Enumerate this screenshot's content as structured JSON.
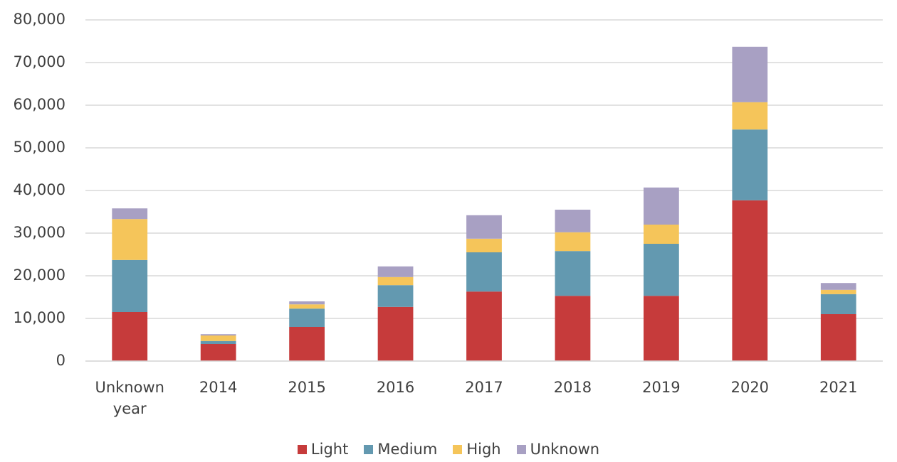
{
  "chart_data": {
    "type": "stacked_bar",
    "categories": [
      "Unknown year",
      "2014",
      "2015",
      "2016",
      "2017",
      "2018",
      "2019",
      "2020",
      "2021"
    ],
    "series": [
      {
        "name": "Light",
        "color": "#c63b3b",
        "values": [
          11500,
          4000,
          8000,
          12700,
          16300,
          15300,
          15300,
          37700,
          11000
        ]
      },
      {
        "name": "Medium",
        "color": "#6399b0",
        "values": [
          12200,
          700,
          4300,
          5100,
          9200,
          10500,
          12200,
          16600,
          4700
        ]
      },
      {
        "name": "High",
        "color": "#f5c55a",
        "values": [
          9600,
          1300,
          1000,
          1900,
          3200,
          4400,
          4500,
          6400,
          1000
        ]
      },
      {
        "name": "Unknown",
        "color": "#a8a0c3",
        "values": [
          2500,
          300,
          700,
          2500,
          5500,
          5300,
          8700,
          13000,
          1600
        ]
      }
    ],
    "ylim": [
      0,
      80000
    ],
    "yticks": [
      0,
      {
        "value": 10000,
        "label": "10,000"
      },
      {
        "value": 20000,
        "label": "20,000"
      },
      {
        "value": 30000,
        "label": "30,000"
      },
      {
        "value": 40000,
        "label": "40,000"
      },
      {
        "value": 50000,
        "label": "50,000"
      },
      {
        "value": 60000,
        "label": "60,000"
      },
      {
        "value": 70000,
        "label": "70,000"
      },
      {
        "value": 80000,
        "label": "80,000"
      }
    ],
    "grid": true,
    "legend": "bottom"
  }
}
